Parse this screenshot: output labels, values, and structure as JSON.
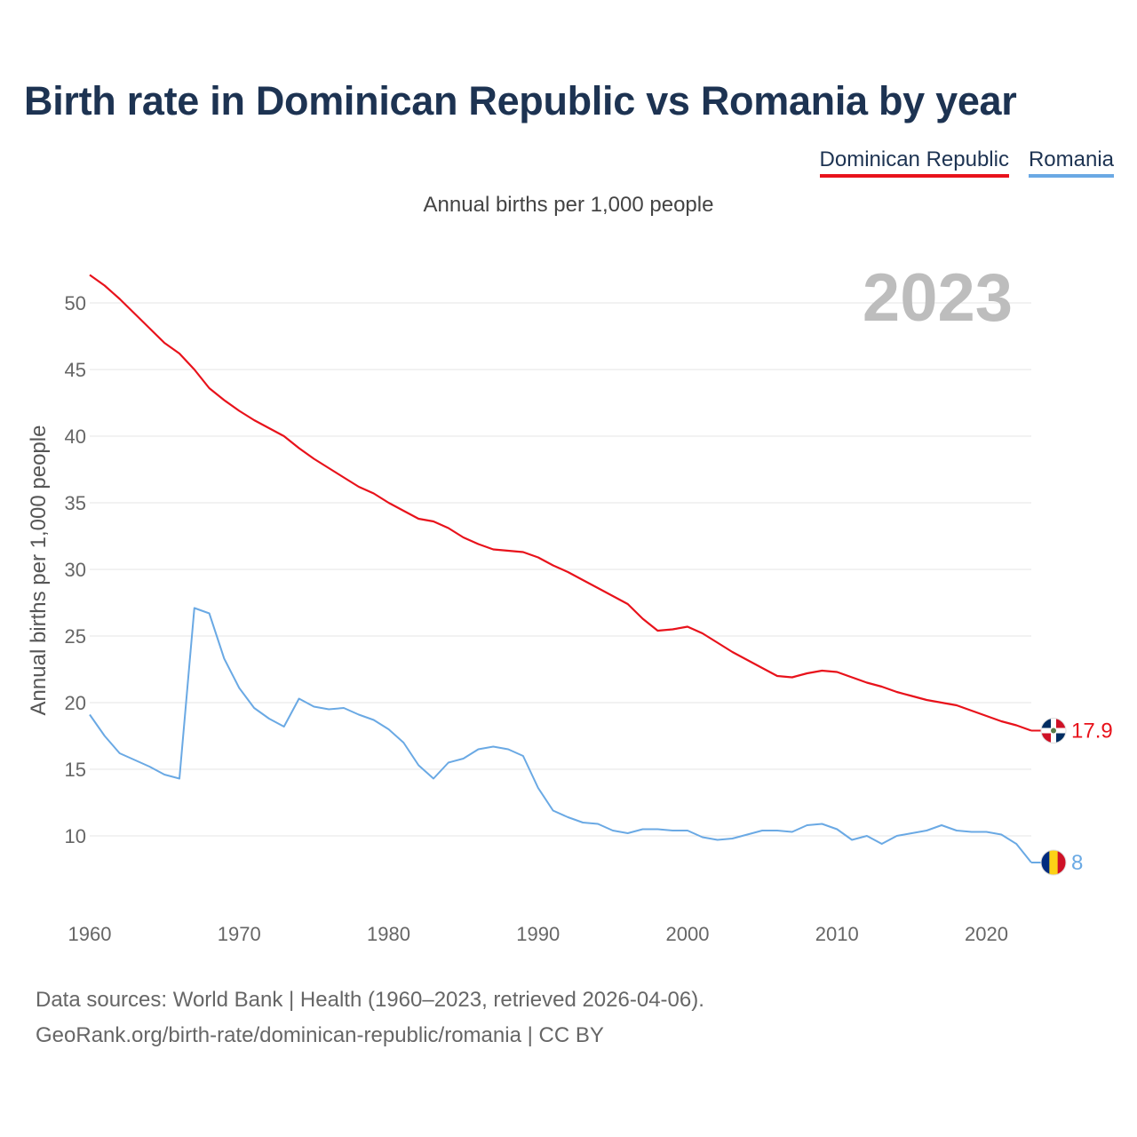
{
  "title": "Birth rate in Dominican Republic vs Romania by year",
  "subtitle": "Annual births per 1,000 people",
  "legend": [
    {
      "name": "Dominican Republic",
      "color": "#e8121b"
    },
    {
      "name": "Romania",
      "color": "#6aa9e4"
    }
  ],
  "current_year": "2023",
  "footer": {
    "line1": "Data sources: World Bank | Health (1960–2023, retrieved 2026-04-06).",
    "line2": "GeoRank.org/birth-rate/dominican-republic/romania | CC BY"
  },
  "chart_data": {
    "type": "line",
    "title": "Birth rate in Dominican Republic vs Romania by year",
    "ylabel": "Annual births per 1,000 people",
    "xlabel": "",
    "xlim": [
      1960,
      2023
    ],
    "ylim": [
      5,
      53
    ],
    "x_ticks": [
      1960,
      1970,
      1980,
      1990,
      2000,
      2010,
      2020
    ],
    "y_ticks": [
      10,
      15,
      20,
      25,
      30,
      35,
      40,
      45,
      50
    ],
    "grid": true,
    "x": [
      1960,
      1961,
      1962,
      1963,
      1964,
      1965,
      1966,
      1967,
      1968,
      1969,
      1970,
      1971,
      1972,
      1973,
      1974,
      1975,
      1976,
      1977,
      1978,
      1979,
      1980,
      1981,
      1982,
      1983,
      1984,
      1985,
      1986,
      1987,
      1988,
      1989,
      1990,
      1991,
      1992,
      1993,
      1994,
      1995,
      1996,
      1997,
      1998,
      1999,
      2000,
      2001,
      2002,
      2003,
      2004,
      2005,
      2006,
      2007,
      2008,
      2009,
      2010,
      2011,
      2012,
      2013,
      2014,
      2015,
      2016,
      2017,
      2018,
      2019,
      2020,
      2021,
      2022,
      2023
    ],
    "series": [
      {
        "name": "Dominican Republic",
        "color": "#e8121b",
        "end_label": "17.9",
        "values": [
          52.1,
          51.3,
          50.3,
          49.2,
          48.1,
          47.0,
          46.2,
          45.0,
          43.6,
          42.7,
          41.9,
          41.2,
          40.6,
          40.0,
          39.1,
          38.3,
          37.6,
          36.9,
          36.2,
          35.7,
          35.0,
          34.4,
          33.8,
          33.6,
          33.1,
          32.4,
          31.9,
          31.5,
          31.4,
          31.3,
          30.9,
          30.3,
          29.8,
          29.2,
          28.6,
          28.0,
          27.4,
          26.3,
          25.4,
          25.5,
          25.7,
          25.2,
          24.5,
          23.8,
          23.2,
          22.6,
          22.0,
          21.9,
          22.2,
          22.4,
          22.3,
          21.9,
          21.5,
          21.2,
          20.8,
          20.5,
          20.2,
          20.0,
          19.8,
          19.4,
          19.0,
          18.6,
          18.3,
          17.9
        ]
      },
      {
        "name": "Romania",
        "color": "#6aa9e4",
        "end_label": "8",
        "values": [
          19.1,
          17.5,
          16.2,
          15.7,
          15.2,
          14.6,
          14.3,
          27.1,
          26.7,
          23.3,
          21.1,
          19.6,
          18.8,
          18.2,
          20.3,
          19.7,
          19.5,
          19.6,
          19.1,
          18.7,
          18.0,
          17.0,
          15.3,
          14.3,
          15.5,
          15.8,
          16.5,
          16.7,
          16.5,
          16.0,
          13.6,
          11.9,
          11.4,
          11.0,
          10.9,
          10.4,
          10.2,
          10.5,
          10.5,
          10.4,
          10.4,
          9.9,
          9.7,
          9.8,
          10.1,
          10.4,
          10.4,
          10.3,
          10.8,
          10.9,
          10.5,
          9.7,
          10.0,
          9.4,
          10.0,
          10.2,
          10.4,
          10.8,
          10.4,
          10.3,
          10.3,
          10.1,
          9.4,
          8.0
        ]
      }
    ]
  }
}
